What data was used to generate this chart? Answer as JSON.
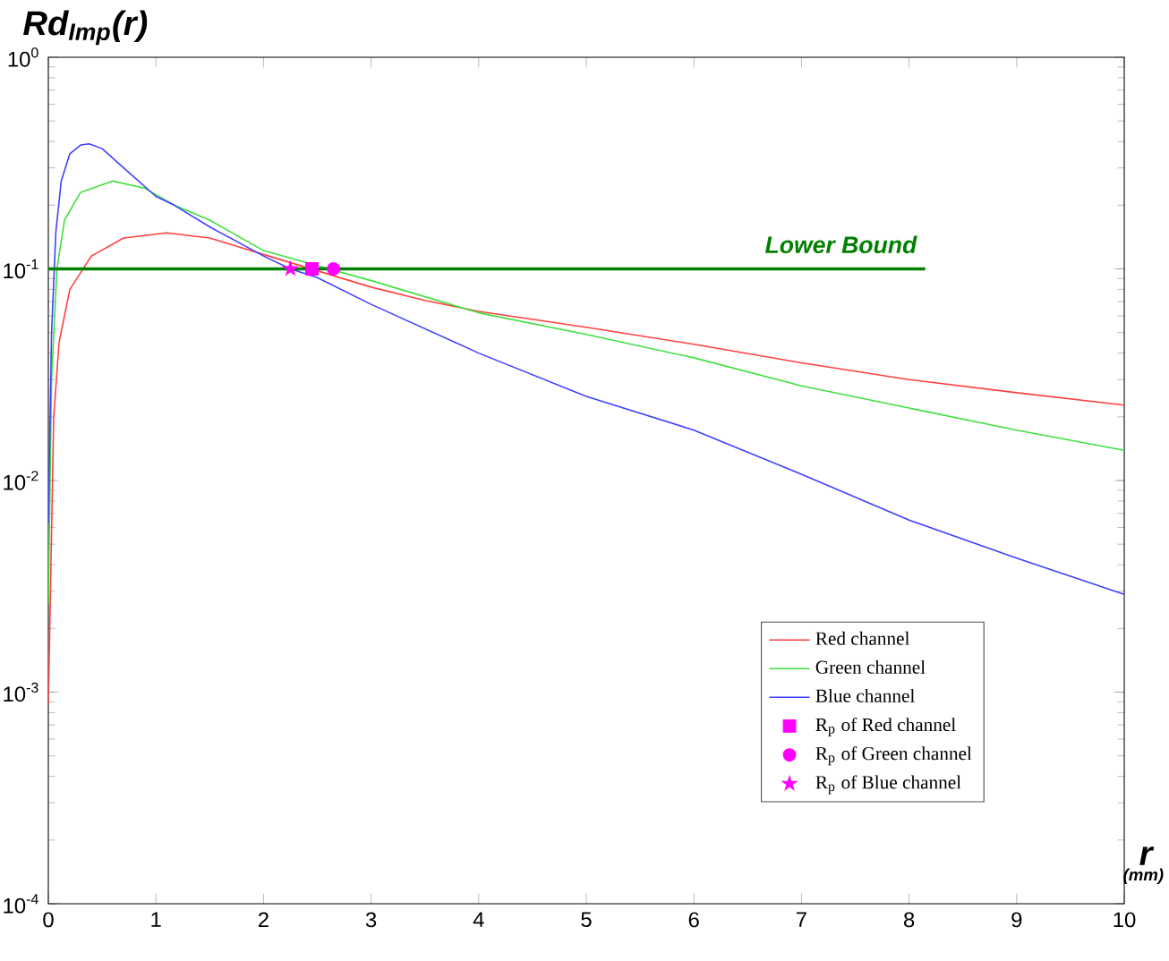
{
  "chart_data": {
    "type": "line",
    "ylabel": "Rd$_{Imp}$(r)",
    "xlabel": "r",
    "annotations": [
      "(mm)"
    ],
    "log": "y",
    "xlim": [
      0,
      10
    ],
    "ylim": [
      0.0001,
      1
    ],
    "xticks": [
      0,
      1,
      2,
      3,
      4,
      5,
      6,
      7,
      8,
      9,
      10
    ],
    "yticks": [
      {
        "value": 0.0001,
        "label": "10$^{-4}$"
      },
      {
        "value": 0.001,
        "label": "10$^{-3}$"
      },
      {
        "value": 0.01,
        "label": "10$^{-2}$"
      },
      {
        "value": 0.1,
        "label": "10$^{-1}$"
      },
      {
        "value": 1,
        "label": "10$^{0}$"
      }
    ],
    "legend": "bottom right",
    "grid": false,
    "series": [
      {
        "name": "Red channel",
        "color": "#ff4040",
        "x": [
          0,
          0.05,
          0.1,
          0.2,
          0.4,
          0.7,
          1.1,
          1.5,
          2,
          3,
          3.5,
          4,
          5,
          6,
          7,
          8,
          9,
          10
        ],
        "values": [
          0.00087,
          0.02,
          0.045,
          0.08,
          0.115,
          0.14,
          0.148,
          0.14,
          0.117,
          0.082,
          0.071,
          0.063,
          0.053,
          0.044,
          0.036,
          0.03,
          0.026,
          0.0227
        ]
      },
      {
        "name": "Green channel",
        "color": "#40e040",
        "x": [
          0,
          0.03,
          0.08,
          0.15,
          0.3,
          0.6,
          0.9,
          1.17,
          1.5,
          2,
          3,
          4,
          5,
          6,
          7,
          8,
          9,
          10
        ],
        "values": [
          0.0026,
          0.03,
          0.1,
          0.17,
          0.23,
          0.26,
          0.24,
          0.2,
          0.17,
          0.122,
          0.088,
          0.062,
          0.049,
          0.038,
          0.028,
          0.022,
          0.0173,
          0.0139
        ]
      },
      {
        "name": "Blue channel",
        "color": "#4040ff",
        "x": [
          0,
          0.03,
          0.07,
          0.12,
          0.2,
          0.3,
          0.38,
          0.5,
          0.7,
          1,
          1.17,
          1.5,
          2,
          2.25,
          2.5,
          3,
          4,
          5,
          6,
          7,
          8,
          9,
          10
        ],
        "values": [
          0.0063,
          0.05,
          0.15,
          0.26,
          0.35,
          0.385,
          0.39,
          0.37,
          0.3,
          0.22,
          0.2,
          0.158,
          0.115,
          0.1,
          0.091,
          0.068,
          0.04,
          0.025,
          0.0173,
          0.0107,
          0.0065,
          0.0043,
          0.0029
        ]
      },
      {
        "name": "R$_{p}$ of Red channel",
        "type": "scatter",
        "marker": "square",
        "color": "#ff00ff",
        "x": [
          2.45
        ],
        "values": [
          0.1
        ]
      },
      {
        "name": "R$_{p}$ of Green channel",
        "type": "scatter",
        "marker": "circle",
        "color": "#ff00ff",
        "x": [
          2.65
        ],
        "values": [
          0.1
        ]
      },
      {
        "name": "R$_{p}$ of Blue channel",
        "type": "scatter",
        "marker": "star",
        "color": "#ff00ff",
        "x": [
          2.25
        ],
        "values": [
          0.1
        ]
      },
      {
        "name": "Lower Bound",
        "color": "#008000",
        "x": [
          0,
          8.15
        ],
        "values": [
          0.1,
          0.1
        ],
        "line_style": "solid"
      }
    ]
  }
}
